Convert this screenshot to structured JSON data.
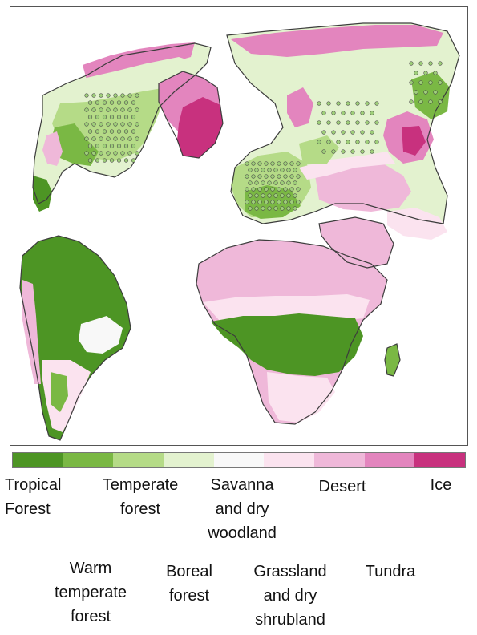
{
  "legend": {
    "colors": [
      "#4d9524",
      "#7ab844",
      "#b5db87",
      "#e3f2cf",
      "#f8f8f8",
      "#fbe3ef",
      "#efb8d9",
      "#e385be",
      "#c8317e"
    ],
    "labels": {
      "tropical_forest": [
        "Tropical",
        "Forest"
      ],
      "warm_temperate_forest": [
        "Warm",
        "temperate",
        "forest"
      ],
      "temperate_forest": [
        "Temperate",
        "forest"
      ],
      "boreal_forest": [
        "Boreal",
        "forest"
      ],
      "savanna": [
        "Savanna",
        "and dry",
        "woodland"
      ],
      "grassland": [
        "Grassland",
        "and dry",
        "shrubland"
      ],
      "desert": [
        "Desert"
      ],
      "tundra": [
        "Tundra"
      ],
      "ice": [
        "Ice"
      ]
    }
  },
  "map": {
    "colors": {
      "tropical_forest": "#4d9524",
      "warm_temperate_forest": "#7ab844",
      "temperate_forest": "#b5db87",
      "boreal_forest": "#e3f2cf",
      "savanna": "#f8f8f8",
      "grassland": "#fbe3ef",
      "desert": "#efb8d9",
      "tundra": "#e385be",
      "ice": "#c8317e",
      "coastline": "#3c3c3c",
      "site_marker_fill": "#9fcf7a",
      "site_marker_stroke": "#4a4a4a"
    }
  }
}
